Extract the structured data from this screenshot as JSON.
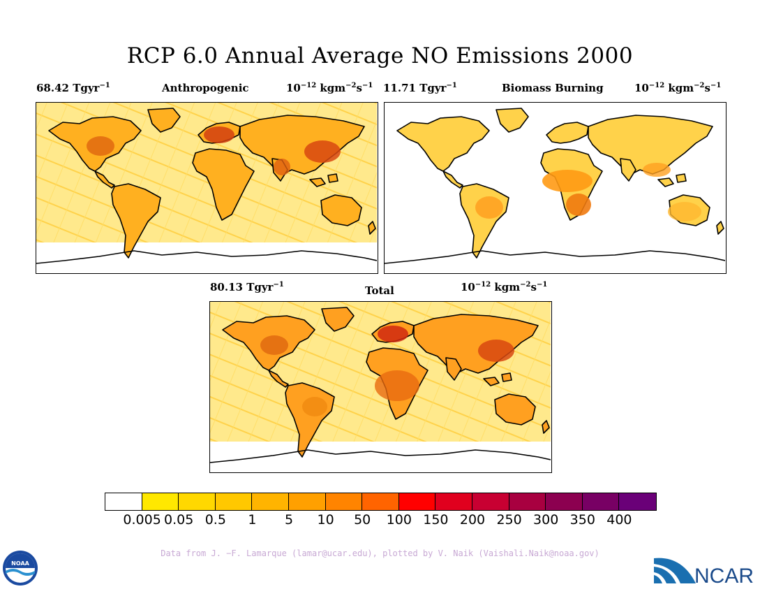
{
  "title": "RCP 6.0 Annual Average NO Emissions 2000",
  "panels": {
    "anthropogenic": {
      "total_value": "68.42 Tgyr",
      "total_exp": "−1",
      "name": "Anthropogenic",
      "units_base": "10",
      "units_exp": "−12",
      "units_rest": " kgm",
      "units_exp2": "−2",
      "units_s": "s",
      "units_exp3": "−1"
    },
    "biomass": {
      "total_value": "11.71 Tgyr",
      "total_exp": "−1",
      "name": "Biomass Burning",
      "units_base": "10",
      "units_exp": "−12",
      "units_rest": " kgm",
      "units_exp2": "−2",
      "units_s": "s",
      "units_exp3": "−1"
    },
    "total": {
      "total_value": "80.13 Tgyr",
      "total_exp": "−1",
      "name": "Total",
      "units_base": "10",
      "units_exp": "−12",
      "units_rest": " kgm",
      "units_exp2": "−2",
      "units_s": "s",
      "units_exp3": "−1"
    }
  },
  "colorbar": {
    "colors": [
      "#ffffff",
      "#ffe800",
      "#ffd800",
      "#ffc800",
      "#ffb400",
      "#ffa000",
      "#ff8400",
      "#ff6400",
      "#ff0000",
      "#e0001e",
      "#c80032",
      "#a80040",
      "#8c0050",
      "#780064",
      "#6a0078"
    ],
    "ticks": [
      "0.005",
      "0.05",
      "0.5",
      "1",
      "5",
      "10",
      "50",
      "100",
      "150",
      "200",
      "250",
      "300",
      "350",
      "400"
    ]
  },
  "credit": "Data from J. −F. Lamarque (lamar@ucar.edu), plotted by V. Naik (Vaishali.Naik@noaa.gov)",
  "logos": {
    "left": "NOAA",
    "right": "NCAR"
  }
}
